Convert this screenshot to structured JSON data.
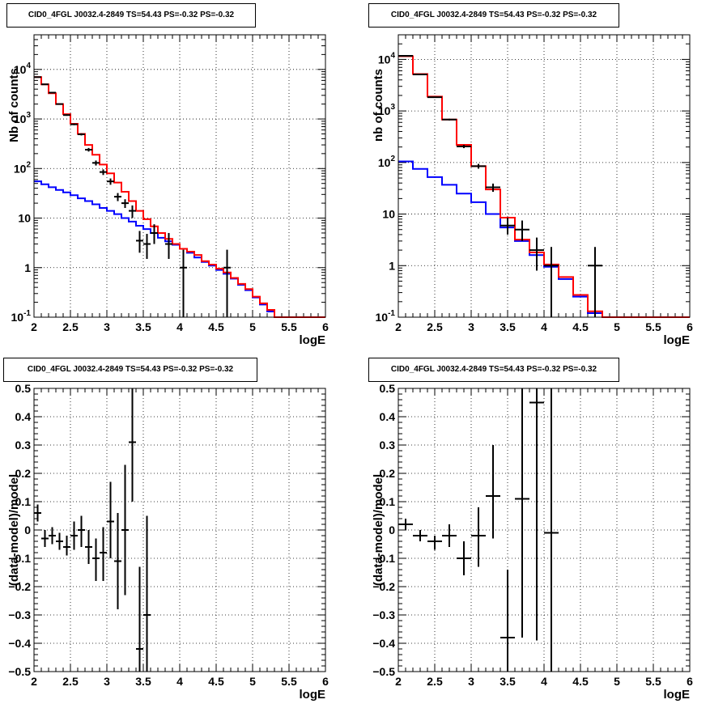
{
  "chart_data": [
    {
      "type": "line",
      "title": "CID0_4FGL J0032.4-2849 TS=54.43 PS=-0.32 PS=-0.32",
      "xlabel": "logE",
      "ylabel": "Nb of counts",
      "xlim": [
        2,
        6
      ],
      "ylim": [
        0.1,
        50000
      ],
      "yscale": "log",
      "grid": true,
      "x_ticks": [
        "2",
        "2.5",
        "3",
        "3.5",
        "4",
        "4.5",
        "5",
        "5.5",
        "6"
      ],
      "y_ticks": [
        {
          "v": 0.1,
          "base": "10",
          "exp": "-1"
        },
        {
          "v": 1,
          "label": "1"
        },
        {
          "v": 10,
          "label": "10"
        },
        {
          "v": 100,
          "base": "10",
          "exp": "2"
        },
        {
          "v": 1000,
          "base": "10",
          "exp": "3"
        },
        {
          "v": 10000,
          "base": "10",
          "exp": "4"
        }
      ],
      "bin_width": 0.1,
      "series": [
        {
          "color": "#0000ff",
          "values": [
            55,
            48,
            42,
            37,
            33,
            29,
            25,
            22,
            19,
            16,
            14,
            12,
            10,
            8.5,
            7,
            6,
            5,
            4,
            3.4,
            2.9,
            2.4,
            2,
            1.6,
            1.3,
            1.1,
            0.9,
            0.75,
            0.6,
            0.45,
            0.35,
            0.25,
            0.18,
            0.13,
            0.1,
            0.1,
            0.1,
            0.1,
            0.1,
            0.1,
            0.1
          ]
        },
        {
          "color": "#ff0000",
          "values": [
            7000,
            5000,
            3300,
            2000,
            1250,
            800,
            500,
            300,
            190,
            120,
            80,
            52,
            34,
            22,
            14,
            9.5,
            6.8,
            5,
            3.8,
            3,
            2.4,
            2.1,
            1.8,
            1.35,
            1.15,
            0.95,
            0.8,
            0.62,
            0.47,
            0.37,
            0.26,
            0.19,
            0.14,
            0.1,
            0.1,
            0.1,
            0.1,
            0.1,
            0.1,
            0.1
          ]
        }
      ],
      "points": [
        {
          "x": 2.05,
          "y": 7000,
          "lo": 6900,
          "hi": 7100
        },
        {
          "x": 2.15,
          "y": 5000,
          "lo": 4900,
          "hi": 5100
        },
        {
          "x": 2.25,
          "y": 3400,
          "lo": 3330,
          "hi": 3460
        },
        {
          "x": 2.35,
          "y": 2000,
          "lo": 1950,
          "hi": 2050
        },
        {
          "x": 2.45,
          "y": 1200,
          "lo": 1160,
          "hi": 1240
        },
        {
          "x": 2.55,
          "y": 780,
          "lo": 750,
          "hi": 810
        },
        {
          "x": 2.65,
          "y": 490,
          "lo": 465,
          "hi": 515
        },
        {
          "x": 2.75,
          "y": 240,
          "lo": 220,
          "hi": 260
        },
        {
          "x": 2.85,
          "y": 130,
          "lo": 115,
          "hi": 145
        },
        {
          "x": 2.95,
          "y": 85,
          "lo": 74,
          "hi": 96
        },
        {
          "x": 3.05,
          "y": 55,
          "lo": 47,
          "hi": 63
        },
        {
          "x": 3.15,
          "y": 27,
          "lo": 22,
          "hi": 32
        },
        {
          "x": 3.25,
          "y": 20,
          "lo": 16,
          "hi": 24
        },
        {
          "x": 3.35,
          "y": 14,
          "lo": 10,
          "hi": 18
        },
        {
          "x": 3.45,
          "y": 3.5,
          "lo": 2,
          "hi": 5.5
        },
        {
          "x": 3.55,
          "y": 3,
          "lo": 1.5,
          "hi": 4.8
        },
        {
          "x": 3.65,
          "y": 5,
          "lo": 3,
          "hi": 7.5
        },
        {
          "x": 3.85,
          "y": 3,
          "lo": 1.5,
          "hi": 5
        },
        {
          "x": 4.05,
          "y": 1,
          "lo": 0.1,
          "hi": 2.3
        },
        {
          "x": 4.65,
          "y": 1,
          "lo": 0.1,
          "hi": 2.3
        }
      ]
    },
    {
      "type": "line",
      "title": "CID0_4FGL J0032.4-2849 TS=54.43 PS=-0.32 PS=-0.32",
      "xlabel": "logE",
      "ylabel": "nb of counts",
      "xlim": [
        2,
        6
      ],
      "ylim": [
        0.1,
        30000
      ],
      "yscale": "log",
      "grid": true,
      "x_ticks": [
        "2",
        "2.5",
        "3",
        "3.5",
        "4",
        "4.5",
        "5",
        "5.5",
        "6"
      ],
      "y_ticks": [
        {
          "v": 0.1,
          "base": "10",
          "exp": "-1"
        },
        {
          "v": 1,
          "label": "1"
        },
        {
          "v": 10,
          "label": "10"
        },
        {
          "v": 100,
          "base": "10",
          "exp": "2"
        },
        {
          "v": 1000,
          "base": "10",
          "exp": "3"
        },
        {
          "v": 10000,
          "base": "10",
          "exp": "4"
        }
      ],
      "bin_width": 0.2,
      "series": [
        {
          "color": "#0000ff",
          "values": [
            105,
            75,
            52,
            37,
            25,
            17,
            10,
            5.5,
            3,
            1.6,
            0.95,
            0.55,
            0.25,
            0.12,
            0.1,
            0.1,
            0.1,
            0.1,
            0.1,
            0.1
          ]
        },
        {
          "color": "#ff0000",
          "values": [
            11500,
            5200,
            1900,
            680,
            220,
            85,
            30,
            8.5,
            3.2,
            1.8,
            1.05,
            0.6,
            0.27,
            0.13,
            0.1,
            0.1,
            0.1,
            0.1,
            0.1,
            0.1
          ]
        }
      ],
      "points": [
        {
          "x": 2.1,
          "y": 11700,
          "lo": 11500,
          "hi": 11900
        },
        {
          "x": 2.3,
          "y": 5100,
          "lo": 5000,
          "hi": 5200
        },
        {
          "x": 2.5,
          "y": 1850,
          "lo": 1800,
          "hi": 1900
        },
        {
          "x": 2.7,
          "y": 680,
          "lo": 655,
          "hi": 705
        },
        {
          "x": 2.9,
          "y": 205,
          "lo": 190,
          "hi": 220
        },
        {
          "x": 3.1,
          "y": 85,
          "lo": 76,
          "hi": 94
        },
        {
          "x": 3.3,
          "y": 33,
          "lo": 27,
          "hi": 39
        },
        {
          "x": 3.5,
          "y": 6,
          "lo": 4,
          "hi": 8.5
        },
        {
          "x": 3.7,
          "y": 5,
          "lo": 3,
          "hi": 7.5
        },
        {
          "x": 3.9,
          "y": 2,
          "lo": 0.8,
          "hi": 3.5
        },
        {
          "x": 4.1,
          "y": 1,
          "lo": 0.1,
          "hi": 2.3
        },
        {
          "x": 4.7,
          "y": 1,
          "lo": 0.1,
          "hi": 2.3
        }
      ]
    },
    {
      "type": "scatter",
      "title": "CID0_4FGL J0032.4-2849 TS=54.43 PS=-0.32 PS=-0.32",
      "xlabel": "logE",
      "ylabel": "(data-model)/model",
      "xlim": [
        2,
        6
      ],
      "ylim": [
        -0.5,
        0.5
      ],
      "yscale": "linear",
      "grid": true,
      "x_ticks": [
        "2",
        "2.5",
        "3",
        "3.5",
        "4",
        "4.5",
        "5",
        "5.5",
        "6"
      ],
      "y_ticks": [
        {
          "v": -0.5,
          "label": "−0.5"
        },
        {
          "v": -0.4,
          "label": "−0.4"
        },
        {
          "v": -0.3,
          "label": "−0.3"
        },
        {
          "v": -0.2,
          "label": "−0.2"
        },
        {
          "v": -0.1,
          "label": "−0.1"
        },
        {
          "v": 0,
          "label": "0"
        },
        {
          "v": 0.1,
          "label": "0.1"
        },
        {
          "v": 0.2,
          "label": "0.2"
        },
        {
          "v": 0.3,
          "label": "0.3"
        },
        {
          "v": 0.4,
          "label": "0.4"
        },
        {
          "v": 0.5,
          "label": "0.5"
        }
      ],
      "bin_width": 0.1,
      "points": [
        {
          "x": 2.05,
          "y": 0.06,
          "lo": 0.03,
          "hi": 0.09
        },
        {
          "x": 2.15,
          "y": -0.03,
          "lo": -0.06,
          "hi": 0.0
        },
        {
          "x": 2.25,
          "y": -0.02,
          "lo": -0.05,
          "hi": 0.01
        },
        {
          "x": 2.35,
          "y": -0.04,
          "lo": -0.07,
          "hi": -0.01
        },
        {
          "x": 2.45,
          "y": -0.06,
          "lo": -0.09,
          "hi": -0.02
        },
        {
          "x": 2.55,
          "y": -0.02,
          "lo": -0.07,
          "hi": 0.03
        },
        {
          "x": 2.65,
          "y": 0.0,
          "lo": -0.06,
          "hi": 0.05
        },
        {
          "x": 2.75,
          "y": -0.06,
          "lo": -0.12,
          "hi": 0.0
        },
        {
          "x": 2.85,
          "y": -0.1,
          "lo": -0.18,
          "hi": -0.03
        },
        {
          "x": 2.95,
          "y": -0.08,
          "lo": -0.18,
          "hi": 0.01
        },
        {
          "x": 3.05,
          "y": 0.03,
          "lo": -0.1,
          "hi": 0.17
        },
        {
          "x": 3.15,
          "y": -0.11,
          "lo": -0.28,
          "hi": 0.06
        },
        {
          "x": 3.25,
          "y": 0.0,
          "lo": -0.23,
          "hi": 0.23
        },
        {
          "x": 3.35,
          "y": 0.31,
          "lo": 0.1,
          "hi": 0.5
        },
        {
          "x": 3.45,
          "y": -0.42,
          "lo": -0.5,
          "hi": -0.13
        },
        {
          "x": 3.55,
          "y": -0.3,
          "lo": -0.5,
          "hi": 0.05
        }
      ]
    },
    {
      "type": "scatter",
      "title": "CID0_4FGL J0032.4-2849 TS=54.43 PS=-0.32 PS=-0.32",
      "xlabel": "logE",
      "ylabel": "(data-model)/model",
      "xlim": [
        2,
        6
      ],
      "ylim": [
        -0.5,
        0.5
      ],
      "yscale": "linear",
      "grid": true,
      "x_ticks": [
        "2",
        "2.5",
        "3",
        "3.5",
        "4",
        "4.5",
        "5",
        "5.5",
        "6"
      ],
      "y_ticks": [
        {
          "v": -0.5,
          "label": "−0.5"
        },
        {
          "v": -0.4,
          "label": "−0.4"
        },
        {
          "v": -0.3,
          "label": "−0.3"
        },
        {
          "v": -0.2,
          "label": "−0.2"
        },
        {
          "v": -0.1,
          "label": "−0.1"
        },
        {
          "v": 0,
          "label": "0"
        },
        {
          "v": 0.1,
          "label": "0.1"
        },
        {
          "v": 0.2,
          "label": "0.2"
        },
        {
          "v": 0.3,
          "label": "0.3"
        },
        {
          "v": 0.4,
          "label": "0.4"
        },
        {
          "v": 0.5,
          "label": "0.5"
        }
      ],
      "bin_width": 0.2,
      "points": [
        {
          "x": 2.1,
          "y": 0.02,
          "lo": 0.0,
          "hi": 0.04
        },
        {
          "x": 2.3,
          "y": -0.02,
          "lo": -0.04,
          "hi": 0.0
        },
        {
          "x": 2.5,
          "y": -0.04,
          "lo": -0.07,
          "hi": -0.02
        },
        {
          "x": 2.7,
          "y": -0.02,
          "lo": -0.06,
          "hi": 0.02
        },
        {
          "x": 2.9,
          "y": -0.1,
          "lo": -0.16,
          "hi": -0.04
        },
        {
          "x": 3.1,
          "y": -0.02,
          "lo": -0.13,
          "hi": 0.08
        },
        {
          "x": 3.3,
          "y": 0.12,
          "lo": -0.03,
          "hi": 0.3
        },
        {
          "x": 3.5,
          "y": -0.38,
          "lo": -0.5,
          "hi": -0.14
        },
        {
          "x": 3.7,
          "y": 0.11,
          "lo": -0.38,
          "hi": 0.5
        },
        {
          "x": 3.9,
          "y": 0.45,
          "lo": -0.39,
          "hi": 0.5
        },
        {
          "x": 4.1,
          "y": -0.01,
          "lo": -0.5,
          "hi": 0.5
        }
      ]
    }
  ]
}
